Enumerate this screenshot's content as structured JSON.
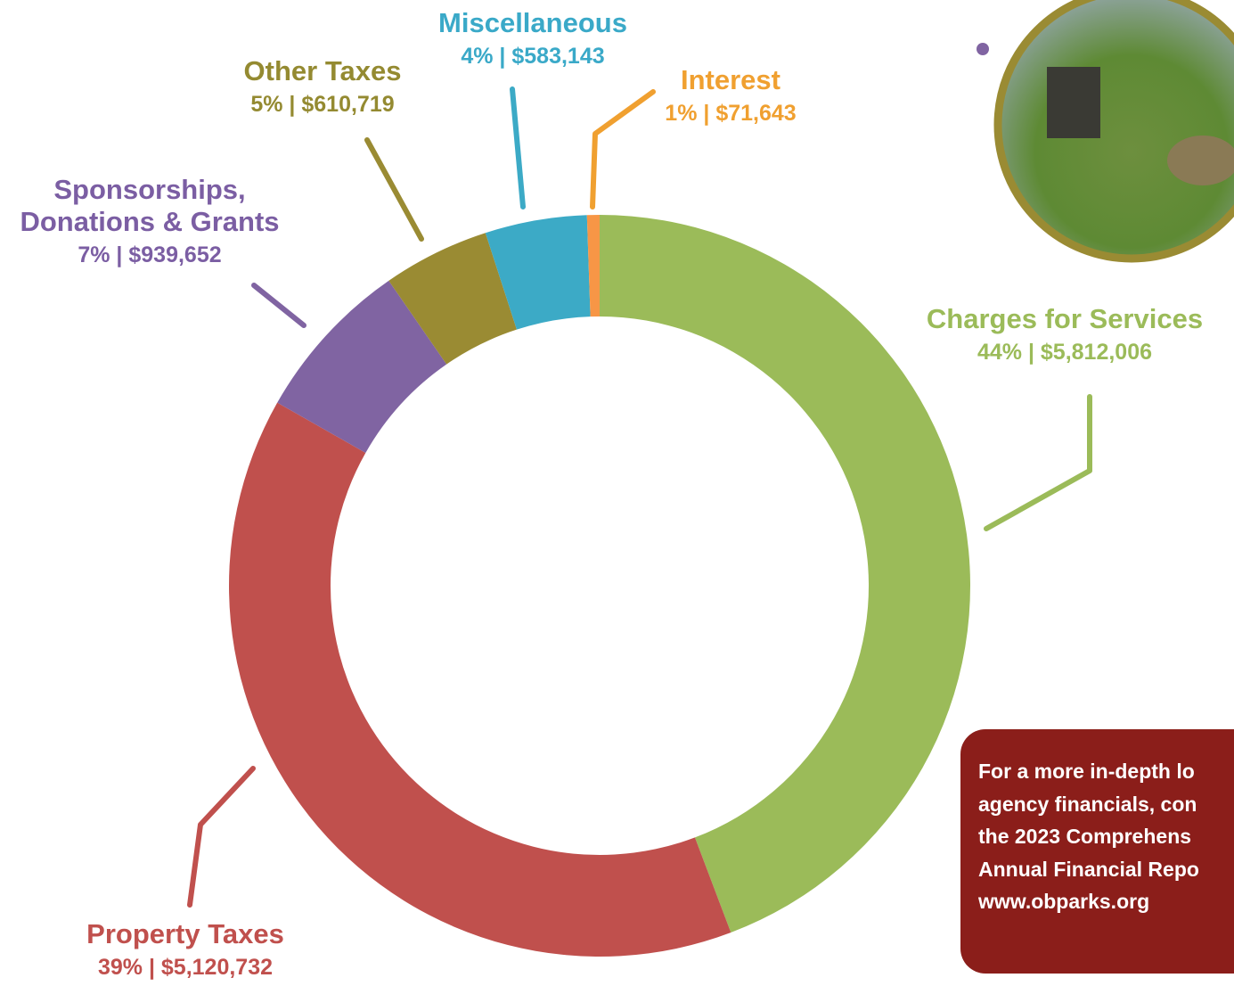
{
  "chart_data": {
    "type": "donut",
    "categories": [
      "Charges for Services",
      "Property Taxes",
      "Sponsorships, Donations & Grants",
      "Other Taxes",
      "Miscellaneous",
      "Interest"
    ],
    "values": [
      5812006,
      5120732,
      939652,
      610719,
      583143,
      71643
    ],
    "value_labels": [
      "44% | $5,812,006",
      "39% | $5,120,732",
      "7% | $939,652",
      "5% | $610,719",
      "4% | $583,143",
      "1% | $71,643"
    ],
    "colors": [
      "#9bbb59",
      "#c0504d",
      "#8064a2",
      "#9a8b33",
      "#3caac6",
      "#f79646"
    ],
    "label_colors": [
      "#9bbb59",
      "#c0504d",
      "#7b5ea3",
      "#948a31",
      "#3aa9c8",
      "#f0a030"
    ]
  },
  "callout": {
    "lines": [
      "For a more in-depth lo",
      "agency financials, con",
      "the 2023 Comprehens",
      "Annual Financial Repo",
      "www.obparks.org"
    ]
  }
}
